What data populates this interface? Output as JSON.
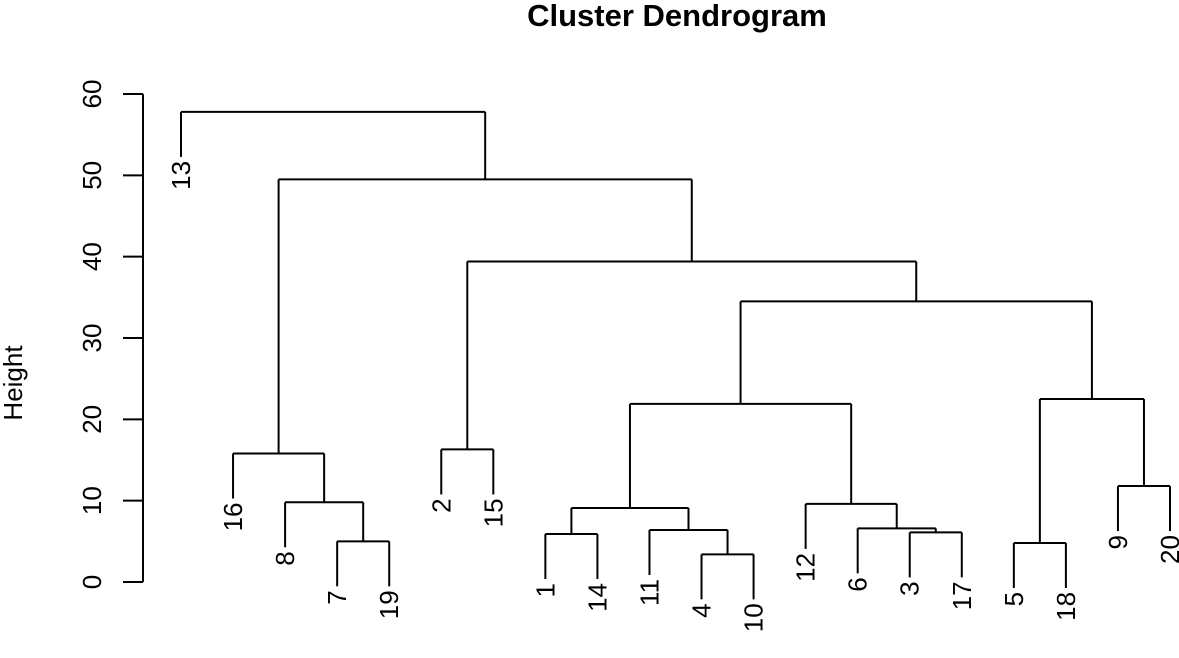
{
  "chart_data": {
    "type": "dendrogram",
    "title": "Cluster Dendrogram",
    "ylabel": "Height",
    "ylim": [
      0,
      60
    ],
    "yticks": [
      0,
      10,
      20,
      30,
      40,
      50,
      60
    ],
    "leaves": [
      "13",
      "16",
      "8",
      "7",
      "19",
      "2",
      "15",
      "1",
      "14",
      "11",
      "4",
      "10",
      "12",
      "6",
      "3",
      "17",
      "5",
      "18",
      "9",
      "20"
    ],
    "merges": [
      {
        "id": "m1",
        "left": "7",
        "right": "19",
        "height": 5.0
      },
      {
        "id": "m2",
        "left": "8",
        "right": "m1",
        "height": 9.8
      },
      {
        "id": "m3",
        "left": "16",
        "right": "m2",
        "height": 15.8
      },
      {
        "id": "m4",
        "left": "2",
        "right": "15",
        "height": 16.3
      },
      {
        "id": "m5",
        "left": "1",
        "right": "14",
        "height": 5.9
      },
      {
        "id": "m6",
        "left": "4",
        "right": "10",
        "height": 3.4
      },
      {
        "id": "m7",
        "left": "11",
        "right": "m6",
        "height": 6.4
      },
      {
        "id": "m8",
        "left": "m5",
        "right": "m7",
        "height": 9.1
      },
      {
        "id": "m9",
        "left": "3",
        "right": "17",
        "height": 6.1
      },
      {
        "id": "m10",
        "left": "6",
        "right": "m9",
        "height": 6.6
      },
      {
        "id": "m11",
        "left": "12",
        "right": "m10",
        "height": 9.6
      },
      {
        "id": "m12",
        "left": "m8",
        "right": "m11",
        "height": 21.9
      },
      {
        "id": "m13",
        "left": "5",
        "right": "18",
        "height": 4.8
      },
      {
        "id": "m14",
        "left": "9",
        "right": "20",
        "height": 11.8
      },
      {
        "id": "m15",
        "left": "m13",
        "right": "m14",
        "height": 22.5
      },
      {
        "id": "m16",
        "left": "m12",
        "right": "m15",
        "height": 34.5
      },
      {
        "id": "m17",
        "left": "m4",
        "right": "m16",
        "height": 39.4
      },
      {
        "id": "m18",
        "left": "m3",
        "right": "m17",
        "height": 49.5
      },
      {
        "id": "m19",
        "left": "13",
        "right": "m18",
        "height": 57.8
      }
    ]
  }
}
